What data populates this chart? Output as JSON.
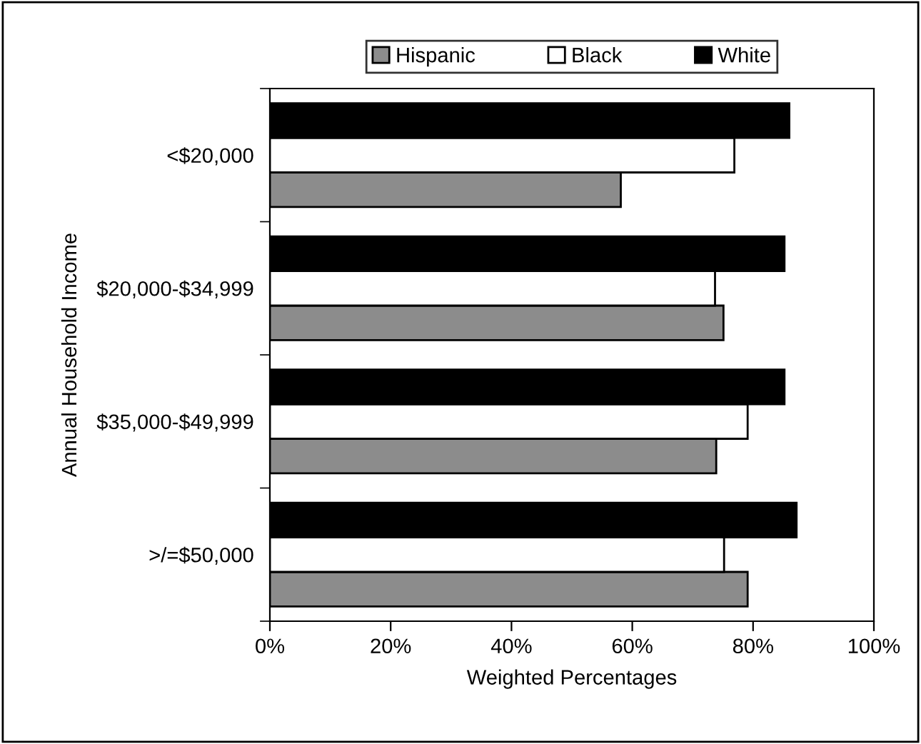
{
  "chart_data": {
    "type": "bar",
    "orientation": "horizontal",
    "xlabel": "Weighted Percentages",
    "ylabel": "Annual Household Income",
    "categories": [
      "<$20,000",
      "$20,000-$34,999",
      "$35,000-$49,999",
      ">/=$50,000"
    ],
    "series": [
      {
        "name": "Hispanic",
        "color": "#8c8c8c",
        "values": [
          58.1,
          75.1,
          73.9,
          79.1
        ]
      },
      {
        "name": "Black",
        "color": "#ffffff",
        "values": [
          76.9,
          73.7,
          79.1,
          75.2
        ]
      },
      {
        "name": "White",
        "color": "#000000",
        "values": [
          86.0,
          85.2,
          85.2,
          87.2
        ]
      }
    ],
    "xlim": [
      0,
      100
    ],
    "xticks": [
      {
        "value": 0,
        "label": "0%"
      },
      {
        "value": 20,
        "label": "20%"
      },
      {
        "value": 40,
        "label": "40%"
      },
      {
        "value": 60,
        "label": "60%"
      },
      {
        "value": 80,
        "label": "80%"
      },
      {
        "value": 100,
        "label": "100%"
      }
    ],
    "grid": false,
    "legend": "top"
  }
}
